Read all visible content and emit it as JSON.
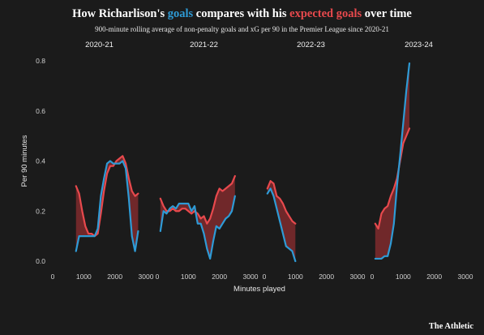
{
  "header": {
    "title_prefix": "How Richarlison's ",
    "title_goals": "goals",
    "title_middle": " compares with his ",
    "title_xg": "expected goals",
    "title_suffix": " over time",
    "subtitle": "900-minute rolling average of non-penalty goals and xG per 90 in the Premier League since 2020-21"
  },
  "footer": {
    "brand": "The Athletic"
  },
  "colors": {
    "goals": "#2e9bd6",
    "xg": "#e8494d",
    "fill": "#7a2a2c",
    "background": "#1b1b1b"
  },
  "chart_data": {
    "type": "line",
    "ylabel": "Per 90 minutes",
    "xlabel": "Minutes played",
    "ylim": [
      0,
      0.8
    ],
    "yticks": [
      "0.0",
      "0.2",
      "0.4",
      "0.6",
      "0.8"
    ],
    "xlim": [
      0,
      3000
    ],
    "xticks": [
      "0",
      "1000",
      "2000",
      "3000"
    ],
    "grid": false,
    "panels": [
      {
        "season": "2020-21",
        "x": [
          750,
          850,
          950,
          1050,
          1150,
          1250,
          1350,
          1450,
          1550,
          1650,
          1750,
          1850,
          1950,
          2050,
          2150,
          2250,
          2350,
          2450,
          2550,
          2650,
          2750
        ],
        "goals": [
          0.04,
          0.1,
          0.1,
          0.1,
          0.1,
          0.1,
          0.1,
          0.13,
          0.26,
          0.33,
          0.39,
          0.4,
          0.39,
          0.39,
          0.39,
          0.4,
          0.37,
          0.25,
          0.1,
          0.04,
          0.12
        ],
        "xg": [
          0.3,
          0.27,
          0.2,
          0.14,
          0.11,
          0.11,
          0.1,
          0.11,
          0.19,
          0.28,
          0.35,
          0.38,
          0.38,
          0.4,
          0.41,
          0.42,
          0.39,
          0.33,
          0.28,
          0.26,
          0.27
        ]
      },
      {
        "season": "2021-22",
        "x": [
          100,
          200,
          300,
          400,
          500,
          600,
          700,
          800,
          900,
          1000,
          1100,
          1200,
          1300,
          1400,
          1500,
          1600,
          1700,
          1800,
          1900,
          2000,
          2100,
          2200,
          2300,
          2400,
          2500
        ],
        "goals": [
          0.12,
          0.2,
          0.19,
          0.21,
          0.22,
          0.21,
          0.23,
          0.23,
          0.23,
          0.23,
          0.2,
          0.22,
          0.15,
          0.15,
          0.11,
          0.05,
          0.01,
          0.08,
          0.14,
          0.13,
          0.15,
          0.17,
          0.18,
          0.2,
          0.26
        ],
        "xg": [
          0.25,
          0.22,
          0.2,
          0.2,
          0.21,
          0.2,
          0.2,
          0.21,
          0.21,
          0.2,
          0.19,
          0.2,
          0.19,
          0.17,
          0.18,
          0.15,
          0.17,
          0.21,
          0.26,
          0.29,
          0.28,
          0.29,
          0.3,
          0.31,
          0.34
        ]
      },
      {
        "season": "2022-23",
        "x": [
          100,
          200,
          300,
          400,
          500,
          600,
          700,
          800,
          900,
          1000
        ],
        "goals": [
          0.27,
          0.29,
          0.26,
          0.21,
          0.16,
          0.11,
          0.06,
          0.05,
          0.04,
          0.0
        ],
        "xg": [
          0.29,
          0.32,
          0.31,
          0.26,
          0.25,
          0.23,
          0.2,
          0.18,
          0.16,
          0.15
        ]
      },
      {
        "season": "2023-24",
        "x": [
          100,
          200,
          300,
          400,
          500,
          600,
          700,
          800,
          900,
          1000,
          1100,
          1200
        ],
        "goals": [
          0.01,
          0.01,
          0.01,
          0.02,
          0.02,
          0.07,
          0.15,
          0.3,
          0.42,
          0.55,
          0.68,
          0.79
        ],
        "xg": [
          0.15,
          0.13,
          0.19,
          0.21,
          0.22,
          0.26,
          0.29,
          0.33,
          0.4,
          0.47,
          0.5,
          0.53
        ]
      }
    ]
  }
}
